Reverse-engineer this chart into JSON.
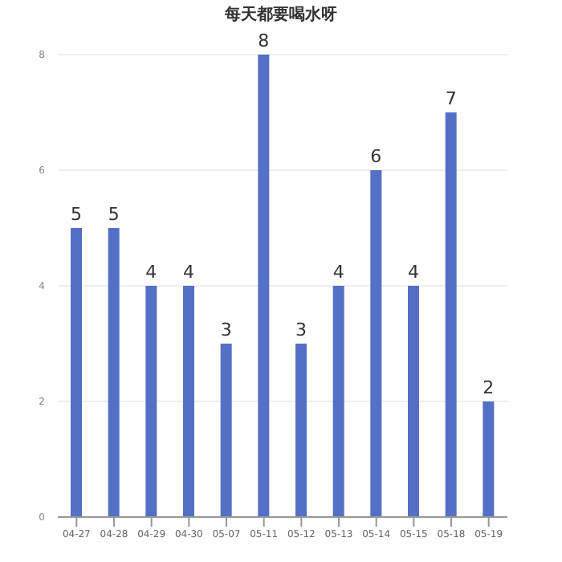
{
  "chart_data": {
    "type": "bar",
    "title": "每天都要喝水呀",
    "categories": [
      "04-27",
      "04-28",
      "04-29",
      "04-30",
      "05-07",
      "05-11",
      "05-12",
      "05-13",
      "05-14",
      "05-15",
      "05-18",
      "05-19"
    ],
    "values": [
      5,
      5,
      4,
      4,
      3,
      8,
      3,
      4,
      6,
      4,
      7,
      2
    ],
    "color": "#5470c6",
    "ylim": [
      0,
      8
    ],
    "yticks": [
      0,
      2,
      4,
      6,
      8
    ],
    "grid": "y",
    "data_labels": true
  }
}
